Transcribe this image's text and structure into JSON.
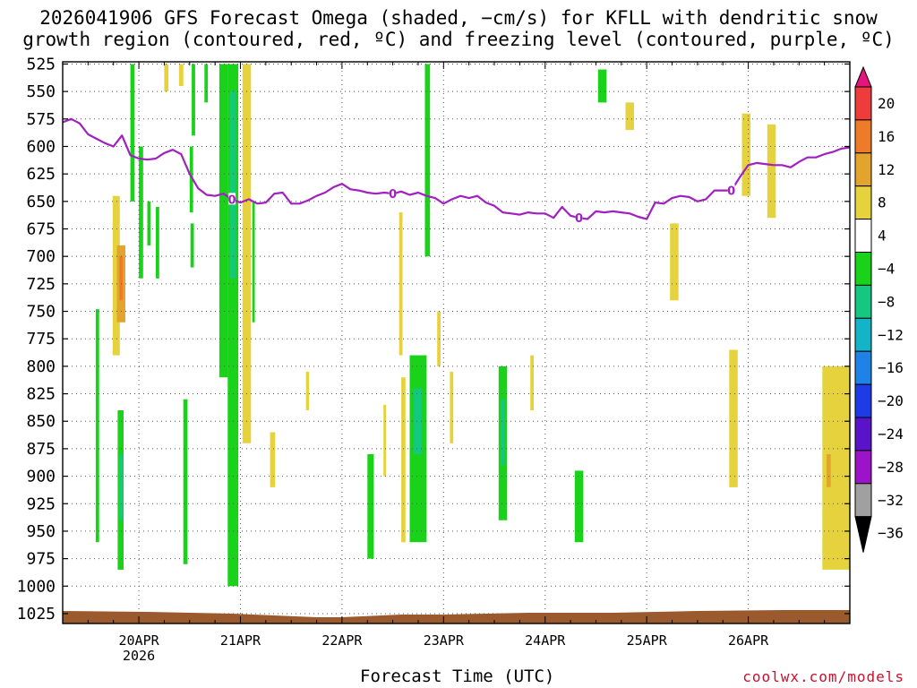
{
  "title": {
    "line1": "2026041906 GFS Forecast Omega (shaded, −cm/s) for KFLL with dendritic snow",
    "line2": "growth region (contoured, red, ºC) and freezing level (contoured, purple, ºC)"
  },
  "credit": "coolwx.com/models",
  "chart_data": {
    "type": "heatmap",
    "xlabel": "Forecast Time (UTC)",
    "ylabel": "",
    "x_range_hours_after_19APR06Z": [
      0,
      186
    ],
    "x_ticks": [
      {
        "hour": 18,
        "label": "20APR",
        "sublabel": "2026"
      },
      {
        "hour": 42,
        "label": "21APR"
      },
      {
        "hour": 66,
        "label": "22APR"
      },
      {
        "hour": 90,
        "label": "23APR"
      },
      {
        "hour": 114,
        "label": "24APR"
      },
      {
        "hour": 138,
        "label": "25APR"
      },
      {
        "hour": 162,
        "label": "26APR"
      }
    ],
    "y_axis": "pressure_hPa",
    "y_reversed": true,
    "y_ticks": [
      525,
      550,
      575,
      600,
      625,
      650,
      675,
      700,
      725,
      750,
      775,
      800,
      825,
      850,
      875,
      900,
      925,
      950,
      975,
      1000,
      1025
    ],
    "grid": true,
    "terrain_color": "#9b5a2e",
    "colorbar": {
      "placement": "right",
      "labels": [
        "20",
        "16",
        "12",
        "8",
        "4",
        "−4",
        "−8",
        "−12",
        "−16",
        "−20",
        "−24",
        "−28",
        "−32",
        "−36"
      ],
      "colors": [
        "#e6147f",
        "#ee3b3b",
        "#ee7b2a",
        "#e3a42e",
        "#e6d23c",
        "#ffffff",
        "#1ad21a",
        "#14c882",
        "#14b4c8",
        "#1e82e6",
        "#1e3ce6",
        "#5a14c8",
        "#9b14c8",
        "#a0a0a0",
        "#000000"
      ]
    },
    "freezing_level": {
      "label": "0",
      "color": "#a020c0",
      "points": [
        [
          0,
          578
        ],
        [
          2,
          575
        ],
        [
          4,
          579
        ],
        [
          6,
          589
        ],
        [
          8,
          593
        ],
        [
          10,
          597
        ],
        [
          12,
          600
        ],
        [
          14,
          590
        ],
        [
          16,
          608
        ],
        [
          18,
          611
        ],
        [
          20,
          612
        ],
        [
          22,
          611
        ],
        [
          24,
          606
        ],
        [
          26,
          603
        ],
        [
          28,
          607
        ],
        [
          30,
          625
        ],
        [
          32,
          638
        ],
        [
          34,
          644
        ],
        [
          36,
          645
        ],
        [
          38,
          643
        ],
        [
          40,
          648
        ],
        [
          42,
          651
        ],
        [
          44,
          648
        ],
        [
          46,
          652
        ],
        [
          48,
          651
        ],
        [
          50,
          643
        ],
        [
          52,
          642
        ],
        [
          54,
          652
        ],
        [
          56,
          652
        ],
        [
          58,
          649
        ],
        [
          60,
          645
        ],
        [
          62,
          642
        ],
        [
          64,
          637
        ],
        [
          66,
          634
        ],
        [
          68,
          639
        ],
        [
          70,
          640
        ],
        [
          72,
          642
        ],
        [
          74,
          643
        ],
        [
          76,
          642
        ],
        [
          78,
          643
        ],
        [
          80,
          641
        ],
        [
          82,
          644
        ],
        [
          84,
          642
        ],
        [
          86,
          645
        ],
        [
          88,
          647
        ],
        [
          90,
          652
        ],
        [
          92,
          648
        ],
        [
          94,
          645
        ],
        [
          96,
          647
        ],
        [
          98,
          645
        ],
        [
          100,
          651
        ],
        [
          102,
          654
        ],
        [
          104,
          660
        ],
        [
          106,
          661
        ],
        [
          108,
          662
        ],
        [
          110,
          660
        ],
        [
          112,
          661
        ],
        [
          114,
          661
        ],
        [
          116,
          665
        ],
        [
          118,
          655
        ],
        [
          120,
          663
        ],
        [
          122,
          665
        ],
        [
          124,
          666
        ],
        [
          126,
          659
        ],
        [
          128,
          660
        ],
        [
          130,
          659
        ],
        [
          132,
          660
        ],
        [
          134,
          661
        ],
        [
          136,
          664
        ],
        [
          138,
          666
        ],
        [
          140,
          651
        ],
        [
          142,
          652
        ],
        [
          144,
          647
        ],
        [
          146,
          645
        ],
        [
          148,
          646
        ],
        [
          150,
          650
        ],
        [
          152,
          648
        ],
        [
          154,
          640
        ],
        [
          156,
          640
        ],
        [
          158,
          640
        ],
        [
          160,
          628
        ],
        [
          162,
          617
        ],
        [
          164,
          615
        ],
        [
          166,
          616
        ],
        [
          168,
          617
        ],
        [
          170,
          617
        ],
        [
          172,
          619
        ],
        [
          174,
          614
        ],
        [
          176,
          610
        ],
        [
          178,
          610
        ],
        [
          180,
          607
        ],
        [
          182,
          605
        ],
        [
          184,
          602
        ],
        [
          186,
          601
        ]
      ],
      "label_hours": [
        40,
        78,
        122,
        158
      ]
    },
    "omega_cells": [
      {
        "x0": 7.8,
        "x1": 8.6,
        "p0": 748,
        "p1": 960,
        "level": -4
      },
      {
        "x0": 11.8,
        "x1": 13.5,
        "p0": 645,
        "p1": 790,
        "level": 4
      },
      {
        "x0": 12.8,
        "x1": 14.8,
        "p0": 690,
        "p1": 760,
        "level": 8
      },
      {
        "x0": 13.4,
        "x1": 14.2,
        "p0": 700,
        "p1": 740,
        "level": 12
      },
      {
        "x0": 13.0,
        "x1": 14.4,
        "p0": 840,
        "p1": 985,
        "level": -4
      },
      {
        "x0": 13.3,
        "x1": 14.1,
        "p0": 880,
        "p1": 940,
        "level": -8
      },
      {
        "x0": 16.0,
        "x1": 17.0,
        "p0": 525,
        "p1": 650,
        "level": -4
      },
      {
        "x0": 18.0,
        "x1": 19.0,
        "p0": 600,
        "p1": 720,
        "level": -4
      },
      {
        "x0": 20.0,
        "x1": 20.8,
        "p0": 650,
        "p1": 690,
        "level": -4
      },
      {
        "x0": 22.0,
        "x1": 22.8,
        "p0": 655,
        "p1": 720,
        "level": -4
      },
      {
        "x0": 24.0,
        "x1": 25.0,
        "p0": 525,
        "p1": 550,
        "level": 4
      },
      {
        "x0": 27.5,
        "x1": 28.5,
        "p0": 525,
        "p1": 545,
        "level": 4
      },
      {
        "x0": 30.5,
        "x1": 31.3,
        "p0": 525,
        "p1": 590,
        "level": -4
      },
      {
        "x0": 30.0,
        "x1": 30.8,
        "p0": 600,
        "p1": 660,
        "level": -4
      },
      {
        "x0": 30.2,
        "x1": 31.0,
        "p0": 670,
        "p1": 710,
        "level": -4
      },
      {
        "x0": 33.5,
        "x1": 34.3,
        "p0": 525,
        "p1": 560,
        "level": -4
      },
      {
        "x0": 28.5,
        "x1": 29.5,
        "p0": 830,
        "p1": 980,
        "level": -4
      },
      {
        "x0": 37.0,
        "x1": 39.0,
        "p0": 525,
        "p1": 810,
        "level": -4
      },
      {
        "x0": 39.0,
        "x1": 41.5,
        "p0": 525,
        "p1": 1000,
        "level": -4
      },
      {
        "x0": 39.5,
        "x1": 40.8,
        "p0": 550,
        "p1": 720,
        "level": -8
      },
      {
        "x0": 42.5,
        "x1": 44.5,
        "p0": 525,
        "p1": 870,
        "level": 4
      },
      {
        "x0": 44.8,
        "x1": 45.4,
        "p0": 650,
        "p1": 760,
        "level": -4
      },
      {
        "x0": 49.0,
        "x1": 50.2,
        "p0": 860,
        "p1": 910,
        "level": 4
      },
      {
        "x0": 57.5,
        "x1": 58.2,
        "p0": 805,
        "p1": 840,
        "level": 4
      },
      {
        "x0": 72.0,
        "x1": 73.5,
        "p0": 880,
        "p1": 975,
        "level": -4
      },
      {
        "x0": 75.8,
        "x1": 76.4,
        "p0": 835,
        "p1": 900,
        "level": 4
      },
      {
        "x0": 80.0,
        "x1": 81.0,
        "p0": 810,
        "p1": 960,
        "level": 4
      },
      {
        "x0": 79.5,
        "x1": 80.3,
        "p0": 660,
        "p1": 790,
        "level": 4
      },
      {
        "x0": 82.0,
        "x1": 86.0,
        "p0": 790,
        "p1": 960,
        "level": -4
      },
      {
        "x0": 83.0,
        "x1": 84.8,
        "p0": 820,
        "p1": 880,
        "level": -8
      },
      {
        "x0": 85.6,
        "x1": 86.8,
        "p0": 525,
        "p1": 700,
        "level": -4
      },
      {
        "x0": 88.5,
        "x1": 89.3,
        "p0": 750,
        "p1": 800,
        "level": 4
      },
      {
        "x0": 91.5,
        "x1": 92.3,
        "p0": 805,
        "p1": 870,
        "level": 4
      },
      {
        "x0": 103.0,
        "x1": 105.0,
        "p0": 800,
        "p1": 940,
        "level": -4
      },
      {
        "x0": 103.6,
        "x1": 104.4,
        "p0": 830,
        "p1": 890,
        "level": -8
      },
      {
        "x0": 110.5,
        "x1": 111.3,
        "p0": 790,
        "p1": 840,
        "level": 4
      },
      {
        "x0": 121.0,
        "x1": 123.0,
        "p0": 895,
        "p1": 960,
        "level": -4
      },
      {
        "x0": 126.5,
        "x1": 128.5,
        "p0": 530,
        "p1": 560,
        "level": -4
      },
      {
        "x0": 133.0,
        "x1": 135.0,
        "p0": 560,
        "p1": 585,
        "level": 4
      },
      {
        "x0": 143.5,
        "x1": 145.5,
        "p0": 670,
        "p1": 740,
        "level": 4
      },
      {
        "x0": 157.5,
        "x1": 159.5,
        "p0": 785,
        "p1": 910,
        "level": 4
      },
      {
        "x0": 160.5,
        "x1": 162.5,
        "p0": 570,
        "p1": 645,
        "level": 4
      },
      {
        "x0": 166.5,
        "x1": 168.5,
        "p0": 580,
        "p1": 665,
        "level": 4
      },
      {
        "x0": 179.5,
        "x1": 186.0,
        "p0": 800,
        "p1": 985,
        "level": 4
      },
      {
        "x0": 180.5,
        "x1": 181.5,
        "p0": 880,
        "p1": 910,
        "level": 8
      }
    ]
  }
}
